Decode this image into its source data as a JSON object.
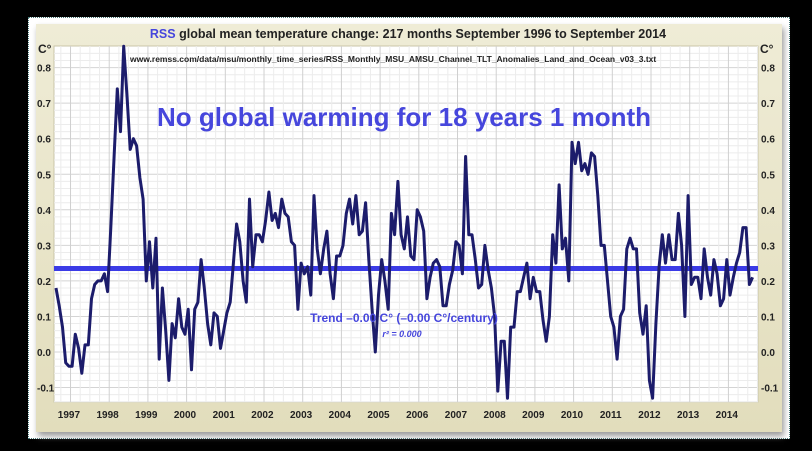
{
  "chart_data": {
    "type": "line",
    "title_prefix": "RSS",
    "title": "global mean temperature change: 217 months September 1996 to September 2014",
    "source": "www.remss.com/data/msu/monthly_time_series/RSS_Monthly_MSU_AMSU_Channel_TLT_Anomalies_Land_and_Ocean_v03_3.txt",
    "headline": "No global warming for 18 years 1 month",
    "trend_label": "Trend –0.00 C° (–0.00 C°/century)",
    "r2_label": "r² = 0.000",
    "ylabel_left": "C°",
    "ylabel_right": "C°",
    "ylim": [
      -0.14,
      0.86
    ],
    "yticks": [
      "0.8",
      "0.7",
      "0.6",
      "0.5",
      "0.4",
      "0.3",
      "0.2",
      "0.1",
      "0.0",
      "-0.1"
    ],
    "ytick_values": [
      0.8,
      0.7,
      0.6,
      0.5,
      0.4,
      0.3,
      0.2,
      0.1,
      0.0,
      -0.1
    ],
    "xticks": [
      "1997",
      "1998",
      "1999",
      "2000",
      "2001",
      "2002",
      "2003",
      "2004",
      "2005",
      "2006",
      "2007",
      "2008",
      "2009",
      "2010",
      "2011",
      "2012",
      "2013",
      "2014"
    ],
    "start": "1996-09",
    "end": "2014-09",
    "grid": true,
    "colors": {
      "series": "#1c1c6b",
      "trend": "#3b3be6",
      "text": "#4646dc",
      "title": "#222222"
    },
    "series": [
      {
        "values": [
          0.18,
          0.13,
          0.07,
          -0.03,
          -0.04,
          -0.04,
          0.05,
          0.01,
          -0.06,
          0.02,
          0.02,
          0.15,
          0.19,
          0.2,
          0.2,
          0.22,
          0.17,
          0.35,
          0.55,
          0.74,
          0.62,
          0.86,
          0.72,
          0.57,
          0.6,
          0.58,
          0.49,
          0.43,
          0.2,
          0.31,
          0.18,
          0.32,
          -0.02,
          0.18,
          0.06,
          -0.08,
          0.08,
          0.04,
          0.15,
          0.07,
          0.05,
          0.12,
          -0.05,
          0.12,
          0.14,
          0.26,
          0.18,
          0.08,
          0.02,
          0.11,
          0.1,
          0.01,
          0.06,
          0.11,
          0.14,
          0.25,
          0.36,
          0.31,
          0.2,
          0.14,
          0.43,
          0.24,
          0.33,
          0.33,
          0.31,
          0.37,
          0.45,
          0.37,
          0.39,
          0.35,
          0.43,
          0.39,
          0.38,
          0.31,
          0.3,
          0.12,
          0.25,
          0.22,
          0.24,
          0.16,
          0.44,
          0.29,
          0.22,
          0.29,
          0.34,
          0.22,
          0.15,
          0.27,
          0.27,
          0.3,
          0.39,
          0.43,
          0.36,
          0.44,
          0.33,
          0.34,
          0.42,
          0.26,
          0.12,
          0.0,
          0.16,
          0.26,
          0.2,
          0.12,
          0.39,
          0.33,
          0.48,
          0.33,
          0.29,
          0.38,
          0.27,
          0.26,
          0.4,
          0.38,
          0.34,
          0.15,
          0.21,
          0.25,
          0.26,
          0.24,
          0.13,
          0.13,
          0.19,
          0.23,
          0.31,
          0.3,
          0.22,
          0.55,
          0.33,
          0.33,
          0.26,
          0.18,
          0.19,
          0.3,
          0.23,
          0.18,
          0.1,
          -0.11,
          0.03,
          0.03,
          -0.13,
          0.07,
          0.07,
          0.17,
          0.17,
          0.21,
          0.25,
          0.15,
          0.21,
          0.17,
          0.17,
          0.09,
          0.03,
          0.1,
          0.33,
          0.25,
          0.47,
          0.29,
          0.32,
          0.2,
          0.59,
          0.53,
          0.59,
          0.51,
          0.53,
          0.5,
          0.56,
          0.55,
          0.44,
          0.3,
          0.3,
          0.2,
          0.1,
          0.07,
          -0.02,
          0.1,
          0.12,
          0.29,
          0.32,
          0.29,
          0.29,
          0.11,
          0.05,
          0.13,
          -0.08,
          -0.13,
          0.08,
          0.24,
          0.33,
          0.25,
          0.33,
          0.26,
          0.26,
          0.39,
          0.3,
          0.1,
          0.44,
          0.19,
          0.21,
          0.21,
          0.15,
          0.29,
          0.21,
          0.16,
          0.26,
          0.22,
          0.13,
          0.15,
          0.26,
          0.16,
          0.21,
          0.25,
          0.28,
          0.35,
          0.35,
          0.19,
          0.21
        ]
      },
      {
        "name": "Trend",
        "values_constant": 0.235
      }
    ]
  }
}
